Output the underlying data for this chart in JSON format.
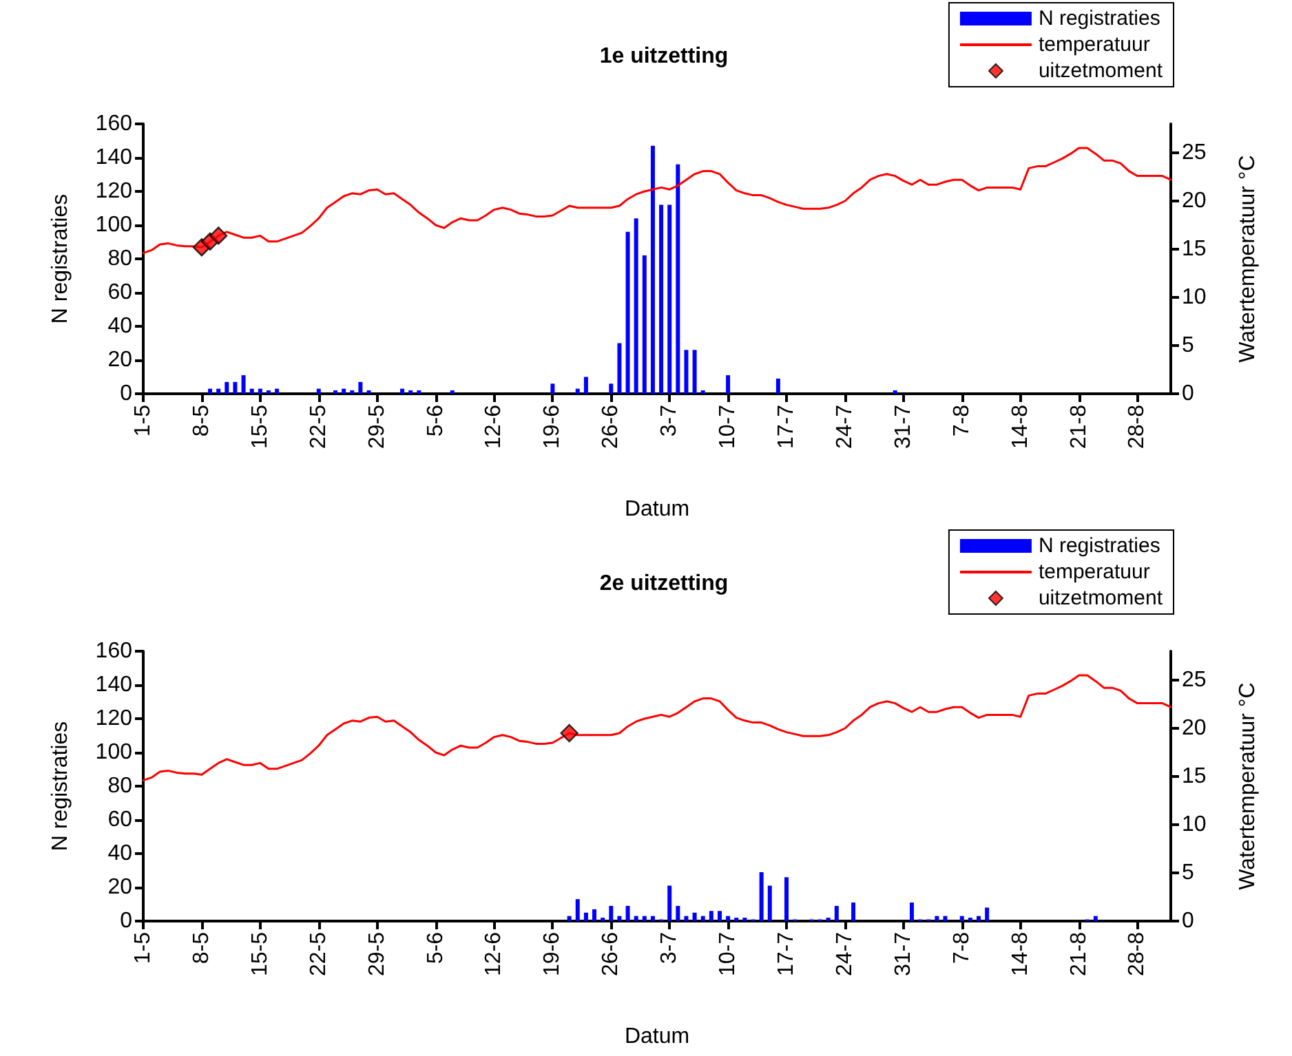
{
  "chart_data": [
    {
      "type": "bar",
      "title": "1e uitzetting",
      "xlabel": "Datum",
      "ylabel": "N registraties",
      "y2label": "Watertemperatuur °C",
      "x": [
        "--05-01",
        "--05-02",
        "--05-03",
        "--05-04",
        "--05-05",
        "--05-06",
        "--05-07",
        "--05-08",
        "--05-09",
        "--05-10",
        "--05-11",
        "--05-12",
        "--05-13",
        "--05-14",
        "--05-15",
        "--05-16",
        "--05-17",
        "--05-18",
        "--05-19",
        "--05-20",
        "--05-21",
        "--05-22",
        "--05-23",
        "--05-24",
        "--05-25",
        "--05-26",
        "--05-27",
        "--05-28",
        "--05-29",
        "--05-30",
        "--05-31",
        "--06-01",
        "--06-02",
        "--06-03",
        "--06-04",
        "--06-05",
        "--06-06",
        "--06-07",
        "--06-08",
        "--06-09",
        "--06-10",
        "--06-11",
        "--06-12",
        "--06-13",
        "--06-14",
        "--06-15",
        "--06-16",
        "--06-17",
        "--06-18",
        "--06-19",
        "--06-20",
        "--06-21",
        "--06-22",
        "--06-23",
        "--06-24",
        "--06-25",
        "--06-26",
        "--06-27",
        "--06-28",
        "--06-29",
        "--06-30",
        "--07-01",
        "--07-02",
        "--07-03",
        "--07-04",
        "--07-05",
        "--07-06",
        "--07-07",
        "--07-08",
        "--07-09",
        "--07-10",
        "--07-11",
        "--07-12",
        "--07-13",
        "--07-14",
        "--07-15",
        "--07-16",
        "--07-17",
        "--07-18",
        "--07-19",
        "--07-20",
        "--07-21",
        "--07-22",
        "--07-23",
        "--07-24",
        "--07-25",
        "--07-26",
        "--07-27",
        "--07-28",
        "--07-29",
        "--07-30",
        "--07-31",
        "--08-01",
        "--08-02",
        "--08-03",
        "--08-04",
        "--08-05",
        "--08-06",
        "--08-07",
        "--08-08",
        "--08-09",
        "--08-10",
        "--08-11",
        "--08-12",
        "--08-13",
        "--08-14",
        "--08-15",
        "--08-16",
        "--08-17",
        "--08-18",
        "--08-19",
        "--08-20",
        "--08-21",
        "--08-22",
        "--08-23",
        "--08-24",
        "--08-25",
        "--08-26",
        "--08-27",
        "--08-28",
        "--08-29",
        "--08-30",
        "--08-31",
        "--09-01"
      ],
      "xlim": [
        "--05-01",
        "--09-01"
      ],
      "xticks": [
        {
          "value": "--05-01",
          "label": "1-5"
        },
        {
          "value": "--05-08",
          "label": "8-5"
        },
        {
          "value": "--05-15",
          "label": "15-5"
        },
        {
          "value": "--05-22",
          "label": "22-5"
        },
        {
          "value": "--05-29",
          "label": "29-5"
        },
        {
          "value": "--06-05",
          "label": "5-6"
        },
        {
          "value": "--06-12",
          "label": "12-6"
        },
        {
          "value": "--06-19",
          "label": "19-6"
        },
        {
          "value": "--06-26",
          "label": "26-6"
        },
        {
          "value": "--07-03",
          "label": "3-7"
        },
        {
          "value": "--07-10",
          "label": "10-7"
        },
        {
          "value": "--07-17",
          "label": "17-7"
        },
        {
          "value": "--07-24",
          "label": "24-7"
        },
        {
          "value": "--07-31",
          "label": "31-7"
        },
        {
          "value": "--08-07",
          "label": "7-8"
        },
        {
          "value": "--08-14",
          "label": "14-8"
        },
        {
          "value": "--08-21",
          "label": "21-8"
        },
        {
          "value": "--08-28",
          "label": "28-8"
        }
      ],
      "ylim": [
        0,
        160
      ],
      "yticks": [
        0,
        20,
        40,
        60,
        80,
        100,
        120,
        140,
        160
      ],
      "y2lim": [
        0,
        28
      ],
      "y2ticks": [
        0,
        5,
        10,
        15,
        20,
        25
      ],
      "grid": false,
      "legend": "top right",
      "series": [
        {
          "name": "N registraties",
          "color": "#0000ff",
          "values": [
            0,
            0,
            0,
            0,
            0,
            0,
            0,
            0,
            3,
            3,
            7,
            7,
            11,
            3,
            3,
            2,
            3,
            0,
            0,
            0,
            0,
            3,
            0,
            2,
            3,
            2,
            7,
            2,
            0,
            0,
            0,
            3,
            2,
            2,
            0,
            0,
            0,
            2,
            0,
            0,
            0,
            0,
            0,
            0,
            0,
            0,
            0,
            0,
            0,
            6,
            0,
            0,
            3,
            10,
            0,
            0,
            6,
            30,
            96,
            104,
            82,
            147,
            112,
            112,
            136,
            26,
            26,
            2,
            0,
            0,
            11,
            0,
            0,
            0,
            0,
            0,
            9,
            0,
            0,
            0,
            0,
            0,
            0,
            0,
            0,
            0,
            0,
            0,
            0,
            0,
            2,
            0,
            0,
            0,
            0,
            0,
            0,
            0,
            0,
            0,
            0,
            0,
            0,
            0,
            0,
            0,
            0,
            0,
            0,
            0,
            0,
            0,
            0,
            0,
            0,
            0,
            0,
            0,
            0,
            0,
            0,
            0,
            0,
            0
          ]
        },
        {
          "name": "temperatuur",
          "type": "line",
          "axis": "y2",
          "color": "#ff0000",
          "line_style": "solid",
          "values": [
            14.6,
            14.9,
            15.5,
            15.6,
            15.4,
            15.3,
            15.3,
            15.2,
            15.8,
            16.4,
            16.8,
            16.5,
            16.2,
            16.2,
            16.4,
            15.8,
            15.8,
            16.1,
            16.4,
            16.7,
            17.4,
            18.2,
            19.3,
            19.9,
            20.5,
            20.8,
            20.7,
            21.1,
            21.2,
            20.7,
            20.8,
            20.2,
            19.6,
            18.8,
            18.2,
            17.5,
            17.2,
            17.8,
            18.2,
            18.0,
            18.0,
            18.5,
            19.1,
            19.3,
            19.1,
            18.7,
            18.6,
            18.4,
            18.4,
            18.5,
            19.0,
            19.5,
            19.3,
            19.3,
            19.3,
            19.3,
            19.3,
            19.5,
            20.2,
            20.7,
            21.0,
            21.2,
            21.4,
            21.2,
            21.6,
            22.2,
            22.8,
            23.1,
            23.1,
            22.8,
            21.9,
            21.1,
            20.8,
            20.6,
            20.6,
            20.3,
            19.9,
            19.6,
            19.4,
            19.2,
            19.2,
            19.2,
            19.3,
            19.6,
            20.0,
            20.8,
            21.4,
            22.2,
            22.6,
            22.8,
            22.6,
            22.1,
            21.7,
            22.2,
            21.7,
            21.7,
            22.0,
            22.2,
            22.2,
            21.6,
            21.1,
            21.4,
            21.4,
            21.4,
            21.4,
            21.2,
            23.4,
            23.6,
            23.6,
            24.0,
            24.4,
            24.9,
            25.5,
            25.5,
            24.9,
            24.2,
            24.2,
            23.9,
            23.1,
            22.6,
            22.6,
            22.6,
            22.6,
            22.2
          ]
        },
        {
          "name": "uitzetmoment",
          "type": "scatter",
          "axis": "y2",
          "color": "#ff0000",
          "marker": "diamond",
          "x": [
            "--05-08",
            "--05-09",
            "--05-10"
          ],
          "values": [
            15.2,
            15.8,
            16.4
          ]
        }
      ]
    },
    {
      "type": "bar",
      "title": "2e uitzetting",
      "xlabel": "Datum",
      "ylabel": "N registraties",
      "y2label": "Watertemperatuur °C",
      "x": [
        "--05-01",
        "--05-02",
        "--05-03",
        "--05-04",
        "--05-05",
        "--05-06",
        "--05-07",
        "--05-08",
        "--05-09",
        "--05-10",
        "--05-11",
        "--05-12",
        "--05-13",
        "--05-14",
        "--05-15",
        "--05-16",
        "--05-17",
        "--05-18",
        "--05-19",
        "--05-20",
        "--05-21",
        "--05-22",
        "--05-23",
        "--05-24",
        "--05-25",
        "--05-26",
        "--05-27",
        "--05-28",
        "--05-29",
        "--05-30",
        "--05-31",
        "--06-01",
        "--06-02",
        "--06-03",
        "--06-04",
        "--06-05",
        "--06-06",
        "--06-07",
        "--06-08",
        "--06-09",
        "--06-10",
        "--06-11",
        "--06-12",
        "--06-13",
        "--06-14",
        "--06-15",
        "--06-16",
        "--06-17",
        "--06-18",
        "--06-19",
        "--06-20",
        "--06-21",
        "--06-22",
        "--06-23",
        "--06-24",
        "--06-25",
        "--06-26",
        "--06-27",
        "--06-28",
        "--06-29",
        "--06-30",
        "--07-01",
        "--07-02",
        "--07-03",
        "--07-04",
        "--07-05",
        "--07-06",
        "--07-07",
        "--07-08",
        "--07-09",
        "--07-10",
        "--07-11",
        "--07-12",
        "--07-13",
        "--07-14",
        "--07-15",
        "--07-16",
        "--07-17",
        "--07-18",
        "--07-19",
        "--07-20",
        "--07-21",
        "--07-22",
        "--07-23",
        "--07-24",
        "--07-25",
        "--07-26",
        "--07-27",
        "--07-28",
        "--07-29",
        "--07-30",
        "--07-31",
        "--08-01",
        "--08-02",
        "--08-03",
        "--08-04",
        "--08-05",
        "--08-06",
        "--08-07",
        "--08-08",
        "--08-09",
        "--08-10",
        "--08-11",
        "--08-12",
        "--08-13",
        "--08-14",
        "--08-15",
        "--08-16",
        "--08-17",
        "--08-18",
        "--08-19",
        "--08-20",
        "--08-21",
        "--08-22",
        "--08-23",
        "--08-24",
        "--08-25",
        "--08-26",
        "--08-27",
        "--08-28",
        "--08-29",
        "--08-30",
        "--08-31",
        "--09-01"
      ],
      "xlim": [
        "--05-01",
        "--09-01"
      ],
      "xticks": [
        {
          "value": "--05-01",
          "label": "1-5"
        },
        {
          "value": "--05-08",
          "label": "8-5"
        },
        {
          "value": "--05-15",
          "label": "15-5"
        },
        {
          "value": "--05-22",
          "label": "22-5"
        },
        {
          "value": "--05-29",
          "label": "29-5"
        },
        {
          "value": "--06-05",
          "label": "5-6"
        },
        {
          "value": "--06-12",
          "label": "12-6"
        },
        {
          "value": "--06-19",
          "label": "19-6"
        },
        {
          "value": "--06-26",
          "label": "26-6"
        },
        {
          "value": "--07-03",
          "label": "3-7"
        },
        {
          "value": "--07-10",
          "label": "10-7"
        },
        {
          "value": "--07-17",
          "label": "17-7"
        },
        {
          "value": "--07-24",
          "label": "24-7"
        },
        {
          "value": "--07-31",
          "label": "31-7"
        },
        {
          "value": "--08-07",
          "label": "7-8"
        },
        {
          "value": "--08-14",
          "label": "14-8"
        },
        {
          "value": "--08-21",
          "label": "21-8"
        },
        {
          "value": "--08-28",
          "label": "28-8"
        }
      ],
      "ylim": [
        0,
        160
      ],
      "yticks": [
        0,
        20,
        40,
        60,
        80,
        100,
        120,
        140,
        160
      ],
      "y2lim": [
        0,
        28
      ],
      "y2ticks": [
        0,
        5,
        10,
        15,
        20,
        25
      ],
      "grid": false,
      "legend": "top right",
      "series": [
        {
          "name": "N registraties",
          "color": "#0000ff",
          "values": [
            0,
            0,
            0,
            0,
            0,
            0,
            0,
            0,
            0,
            0,
            0,
            0,
            0,
            0,
            0,
            0,
            0,
            0,
            0,
            0,
            0,
            0,
            0,
            0,
            0,
            0,
            0,
            0,
            0,
            0,
            0,
            0,
            0,
            0,
            0,
            0,
            0,
            0,
            0,
            0,
            0,
            0,
            0,
            0,
            0,
            0,
            0,
            0,
            0,
            0,
            0,
            3,
            13,
            5,
            7,
            2,
            9,
            3,
            9,
            3,
            3,
            3,
            1,
            21,
            9,
            3,
            5,
            3,
            6,
            6,
            3,
            2,
            2,
            1,
            29,
            21,
            0,
            26,
            1,
            0,
            1,
            1,
            2,
            9,
            0,
            11,
            0,
            0,
            0,
            0,
            0,
            0,
            11,
            1,
            1,
            3,
            3,
            0,
            3,
            2,
            3,
            8,
            0,
            0,
            0,
            0,
            0,
            0,
            0,
            0,
            0,
            0,
            0,
            1,
            3,
            0,
            0,
            0,
            0,
            0,
            0,
            0,
            0,
            0
          ]
        },
        {
          "name": "temperatuur",
          "type": "line",
          "axis": "y2",
          "color": "#ff0000",
          "line_style": "solid",
          "values": [
            14.6,
            14.9,
            15.5,
            15.6,
            15.4,
            15.3,
            15.3,
            15.2,
            15.8,
            16.4,
            16.8,
            16.5,
            16.2,
            16.2,
            16.4,
            15.8,
            15.8,
            16.1,
            16.4,
            16.7,
            17.4,
            18.2,
            19.3,
            19.9,
            20.5,
            20.8,
            20.7,
            21.1,
            21.2,
            20.7,
            20.8,
            20.2,
            19.6,
            18.8,
            18.2,
            17.5,
            17.2,
            17.8,
            18.2,
            18.0,
            18.0,
            18.5,
            19.1,
            19.3,
            19.1,
            18.7,
            18.6,
            18.4,
            18.4,
            18.5,
            19.0,
            19.5,
            19.3,
            19.3,
            19.3,
            19.3,
            19.3,
            19.5,
            20.2,
            20.7,
            21.0,
            21.2,
            21.4,
            21.2,
            21.6,
            22.2,
            22.8,
            23.1,
            23.1,
            22.8,
            21.9,
            21.1,
            20.8,
            20.6,
            20.6,
            20.3,
            19.9,
            19.6,
            19.4,
            19.2,
            19.2,
            19.2,
            19.3,
            19.6,
            20.0,
            20.8,
            21.4,
            22.2,
            22.6,
            22.8,
            22.6,
            22.1,
            21.7,
            22.2,
            21.7,
            21.7,
            22.0,
            22.2,
            22.2,
            21.6,
            21.1,
            21.4,
            21.4,
            21.4,
            21.4,
            21.2,
            23.4,
            23.6,
            23.6,
            24.0,
            24.4,
            24.9,
            25.5,
            25.5,
            24.9,
            24.2,
            24.2,
            23.9,
            23.1,
            22.6,
            22.6,
            22.6,
            22.6,
            22.2
          ]
        },
        {
          "name": "uitzetmoment",
          "type": "scatter",
          "axis": "y2",
          "color": "#ff0000",
          "marker": "diamond",
          "x": [
            "--06-21"
          ],
          "values": [
            19.5
          ]
        }
      ]
    }
  ]
}
